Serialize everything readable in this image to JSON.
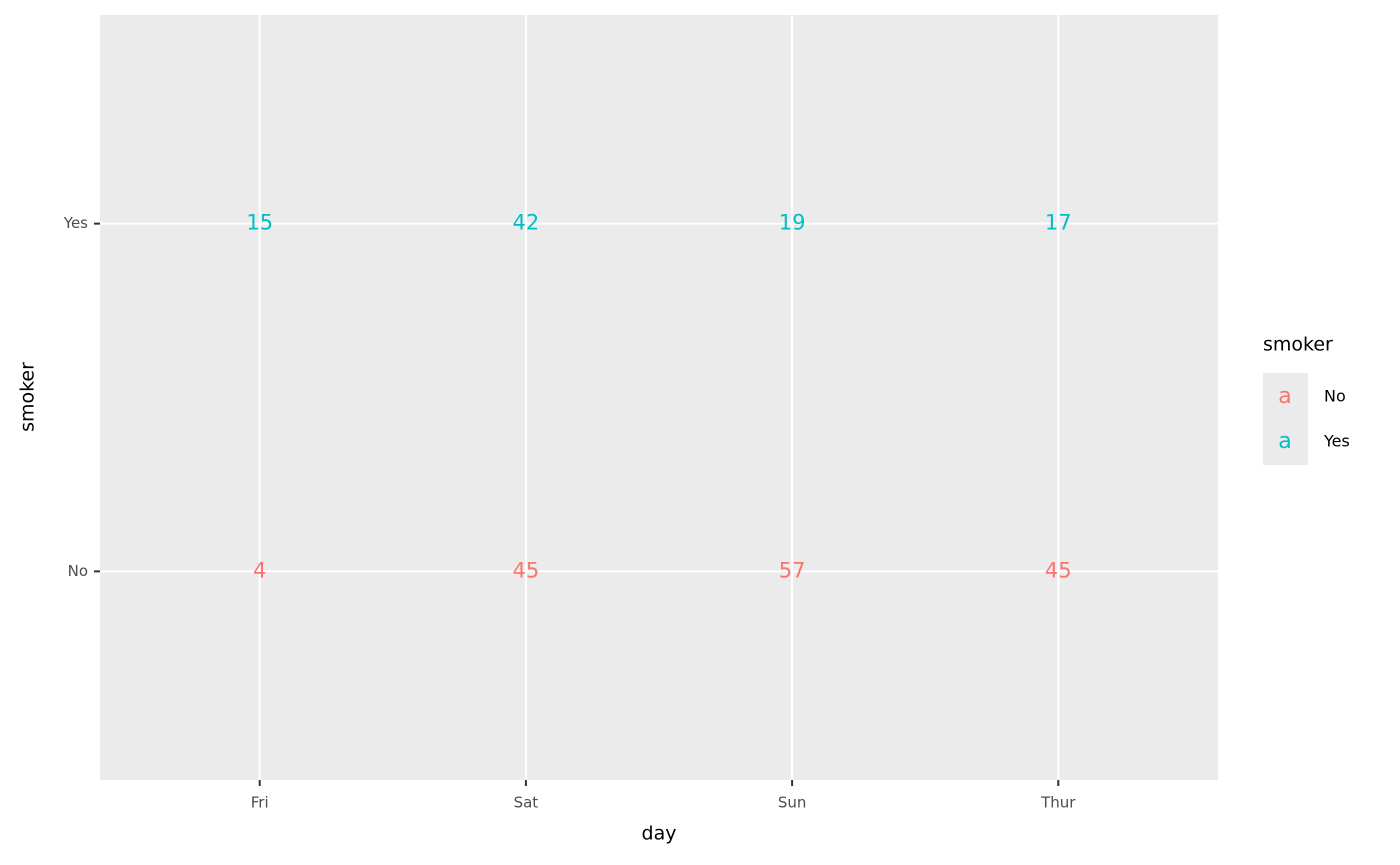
{
  "chart_data": {
    "type": "text",
    "x_label": "day",
    "y_label": "smoker",
    "categories": [
      "Fri",
      "Sat",
      "Sun",
      "Thur"
    ],
    "y_categories": [
      "No",
      "Yes"
    ],
    "series": [
      {
        "name": "No",
        "color": "#F8766D",
        "values": [
          4,
          45,
          57,
          45
        ]
      },
      {
        "name": "Yes",
        "color": "#00BFC4",
        "values": [
          15,
          42,
          19,
          17
        ]
      }
    ],
    "legend_title": "smoker",
    "legend_key": "a",
    "legend_position": "right",
    "grid": true
  }
}
